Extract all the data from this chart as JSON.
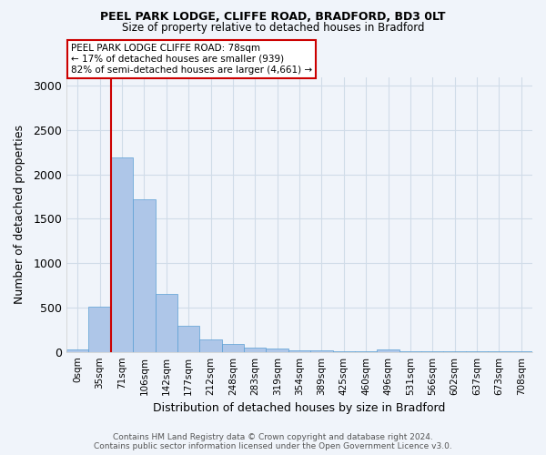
{
  "title1": "PEEL PARK LODGE, CLIFFE ROAD, BRADFORD, BD3 0LT",
  "title2": "Size of property relative to detached houses in Bradford",
  "xlabel": "Distribution of detached houses by size in Bradford",
  "ylabel": "Number of detached properties",
  "categories": [
    "0sqm",
    "35sqm",
    "71sqm",
    "106sqm",
    "142sqm",
    "177sqm",
    "212sqm",
    "248sqm",
    "283sqm",
    "319sqm",
    "354sqm",
    "389sqm",
    "425sqm",
    "460sqm",
    "496sqm",
    "531sqm",
    "566sqm",
    "602sqm",
    "637sqm",
    "673sqm",
    "708sqm"
  ],
  "values": [
    30,
    510,
    2190,
    1720,
    650,
    290,
    145,
    85,
    50,
    35,
    20,
    15,
    10,
    8,
    25,
    5,
    5,
    3,
    3,
    2,
    2
  ],
  "bar_color": "#aec6e8",
  "bar_edge_color": "#5a9fd4",
  "grid_color": "#d0dce8",
  "background_color": "#f0f4fa",
  "vline_x": 2,
  "vline_color": "#cc0000",
  "annotation_text": "PEEL PARK LODGE CLIFFE ROAD: 78sqm\n← 17% of detached houses are smaller (939)\n82% of semi-detached houses are larger (4,661) →",
  "annotation_box_color": "#ffffff",
  "annotation_box_edge_color": "#cc0000",
  "footer_text": "Contains HM Land Registry data © Crown copyright and database right 2024.\nContains public sector information licensed under the Open Government Licence v3.0.",
  "ylim": [
    0,
    3100
  ],
  "yticks": [
    0,
    500,
    1000,
    1500,
    2000,
    2500,
    3000
  ]
}
